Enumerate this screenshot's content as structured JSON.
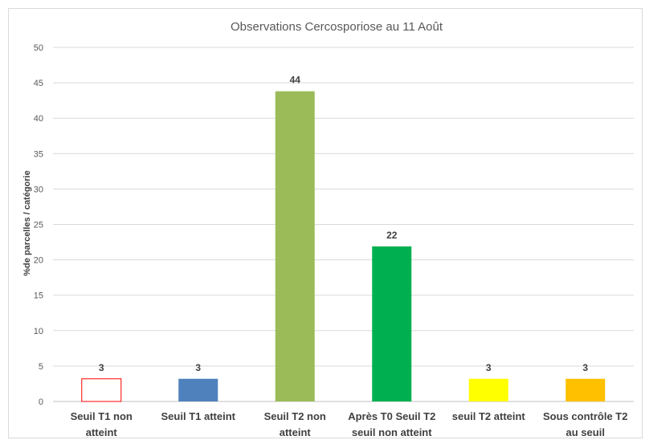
{
  "chart_data": {
    "type": "bar",
    "title": "Observations Cercosporiose  au 11 Août",
    "xlabel": "",
    "ylabel": "%de parcelles / catégorie",
    "ylim": [
      0,
      50
    ],
    "yticks": [
      0,
      5,
      10,
      15,
      20,
      25,
      30,
      35,
      40,
      45,
      50
    ],
    "grid": true,
    "legend": "none",
    "categories": [
      [
        "Seuil T1 non",
        "atteint"
      ],
      [
        "Seuil T1 atteint"
      ],
      [
        "Seuil T2 non",
        "atteint"
      ],
      [
        "Après T0 Seuil T2",
        "seuil non atteint"
      ],
      [
        "seuil T2 atteint"
      ],
      [
        "Sous contrôle T2",
        "au seuil"
      ]
    ],
    "values": [
      3.2,
      3.2,
      43.8,
      21.9,
      3.2,
      3.2
    ],
    "data_labels": [
      "3",
      "3",
      "44",
      "22",
      "3",
      "3"
    ],
    "bar_fills": [
      "#ffffff",
      "#4f81bd",
      "#9bbb59",
      "#00b050",
      "#ffff00",
      "#ffc000"
    ],
    "bar_strokes": [
      "#ff0000",
      "none",
      "none",
      "none",
      "none",
      "none"
    ]
  }
}
